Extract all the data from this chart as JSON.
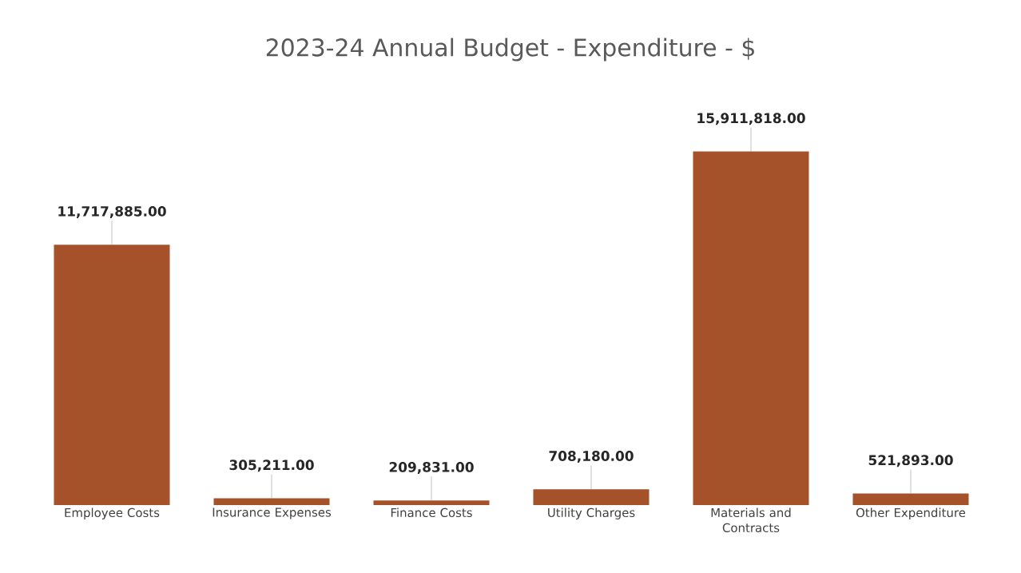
{
  "chart_data": {
    "type": "bar",
    "title": "2023-24 Annual Budget - Expenditure - $",
    "categories": [
      "Employee Costs",
      "Insurance Expenses",
      "Finance Costs",
      "Utility Charges",
      "Materials and Contracts",
      "Other Expenditure"
    ],
    "values": [
      11717885.0,
      305211.0,
      209831.0,
      708180.0,
      15911818.0,
      521893.0
    ],
    "value_labels": [
      "11,717,885.00",
      "305,211.00",
      "209,831.00",
      "708,180.00",
      "15,911,818.00",
      "521,893.00"
    ],
    "color": "#a5522b"
  }
}
